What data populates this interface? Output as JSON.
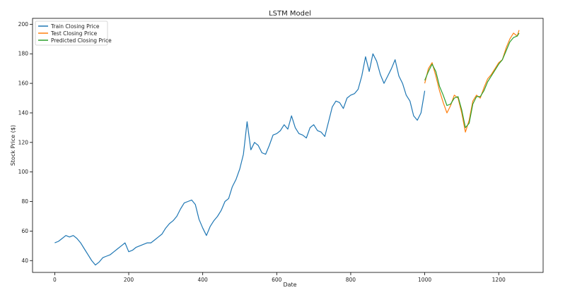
{
  "chart_data": {
    "type": "line",
    "title": "LSTM Model",
    "xlabel": "Date",
    "ylabel": "Stock Price ($)",
    "xlim": [
      -60,
      1320
    ],
    "ylim": [
      32,
      204
    ],
    "xticks": [
      0,
      200,
      400,
      600,
      800,
      1000,
      1200
    ],
    "yticks": [
      40,
      60,
      80,
      100,
      120,
      140,
      160,
      180,
      200
    ],
    "grid": false,
    "legend_position": "top-left",
    "series": [
      {
        "name": "Train Closing Price",
        "color": "#1f77b4",
        "x": [
          0,
          10,
          20,
          30,
          40,
          50,
          60,
          70,
          80,
          90,
          100,
          110,
          120,
          130,
          140,
          150,
          160,
          170,
          180,
          190,
          200,
          210,
          220,
          230,
          240,
          250,
          260,
          270,
          280,
          290,
          300,
          310,
          320,
          330,
          340,
          350,
          360,
          370,
          380,
          390,
          400,
          410,
          420,
          430,
          440,
          450,
          460,
          470,
          480,
          490,
          500,
          510,
          520,
          530,
          540,
          550,
          560,
          570,
          580,
          590,
          600,
          610,
          620,
          630,
          640,
          650,
          660,
          670,
          680,
          690,
          700,
          710,
          720,
          730,
          740,
          750,
          760,
          770,
          780,
          790,
          800,
          810,
          820,
          830,
          840,
          850,
          860,
          870,
          880,
          890,
          900,
          910,
          920,
          930,
          940,
          950,
          960,
          970,
          980,
          990,
          1000
        ],
        "values": [
          52,
          53,
          55,
          57,
          56,
          57,
          55,
          52,
          48,
          44,
          40,
          37,
          39,
          42,
          43,
          44,
          46,
          48,
          50,
          52,
          46,
          47,
          49,
          50,
          51,
          52,
          52,
          54,
          56,
          58,
          62,
          65,
          67,
          70,
          75,
          79,
          80,
          81,
          78,
          68,
          62,
          57,
          63,
          67,
          70,
          74,
          80,
          82,
          90,
          95,
          102,
          112,
          134,
          115,
          120,
          118,
          113,
          112,
          118,
          125,
          126,
          128,
          132,
          129,
          138,
          130,
          126,
          125,
          123,
          130,
          132,
          128,
          127,
          124,
          134,
          144,
          148,
          147,
          143,
          150,
          152,
          153,
          156,
          165,
          178,
          168,
          180,
          175,
          166,
          160,
          165,
          170,
          176,
          165,
          160,
          152,
          148,
          138,
          135,
          140,
          155
        ]
      },
      {
        "name": "Test Closing Price",
        "color": "#ff7f0e",
        "x": [
          1000,
          1010,
          1020,
          1030,
          1040,
          1050,
          1060,
          1070,
          1080,
          1090,
          1100,
          1110,
          1120,
          1130,
          1140,
          1150,
          1160,
          1170,
          1180,
          1190,
          1200,
          1210,
          1220,
          1230,
          1240,
          1250,
          1255
        ],
        "values": [
          160,
          170,
          174,
          165,
          155,
          147,
          140,
          145,
          152,
          150,
          140,
          127,
          135,
          148,
          152,
          150,
          157,
          163,
          166,
          170,
          174,
          176,
          184,
          190,
          194,
          192,
          196
        ]
      },
      {
        "name": "Predicted Closing Price",
        "color": "#2ca02c",
        "x": [
          1000,
          1010,
          1020,
          1030,
          1040,
          1050,
          1060,
          1070,
          1080,
          1090,
          1100,
          1110,
          1120,
          1130,
          1140,
          1150,
          1160,
          1170,
          1180,
          1190,
          1200,
          1210,
          1220,
          1230,
          1240,
          1250,
          1255
        ],
        "values": [
          162,
          168,
          173,
          168,
          158,
          152,
          145,
          146,
          150,
          151,
          142,
          130,
          133,
          146,
          151,
          151,
          155,
          161,
          165,
          169,
          173,
          176,
          182,
          188,
          191,
          192,
          194
        ]
      }
    ]
  }
}
